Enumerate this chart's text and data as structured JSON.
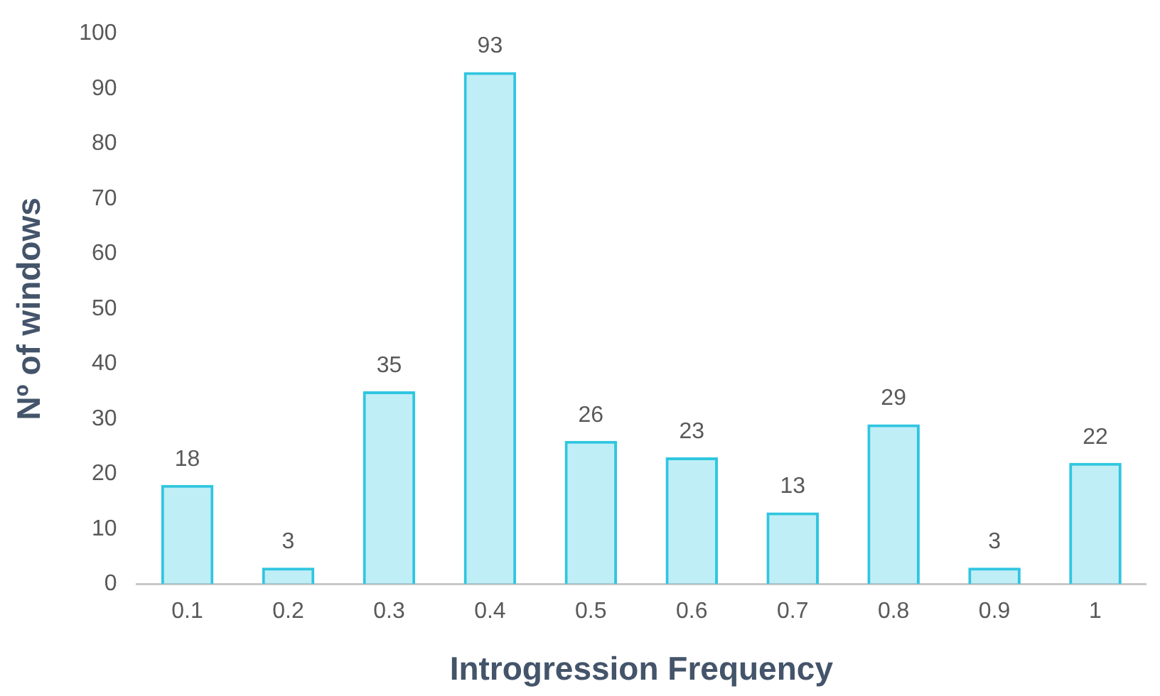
{
  "chart_data": {
    "type": "bar",
    "xlabel": "Introgression Frequency",
    "ylabel": "Nº of windows",
    "categories": [
      "0.1",
      "0.2",
      "0.3",
      "0.4",
      "0.5",
      "0.6",
      "0.7",
      "0.8",
      "0.9",
      "1"
    ],
    "values": [
      18,
      3,
      35,
      93,
      26,
      23,
      13,
      29,
      3,
      22
    ],
    "color": "#2fc6e0",
    "ylim": [
      0,
      100
    ],
    "yticks": [
      0,
      10,
      20,
      30,
      40,
      50,
      60,
      70,
      80,
      90,
      100
    ],
    "grid": false,
    "legend": false,
    "data_labels": true
  }
}
